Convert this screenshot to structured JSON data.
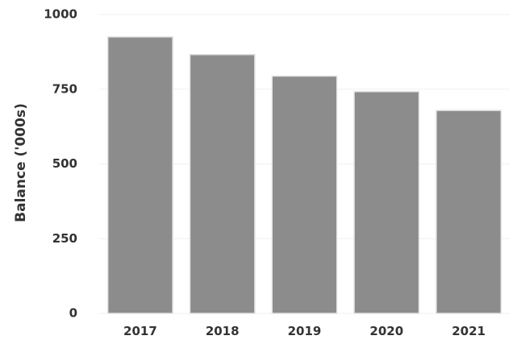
{
  "chart_data": {
    "type": "bar",
    "title": "",
    "xlabel": "",
    "ylabel": "Balance ('000s)",
    "categories": [
      "2017",
      "2018",
      "2019",
      "2020",
      "2021"
    ],
    "values": [
      925,
      866,
      794,
      742,
      679
    ],
    "ylim": [
      0,
      1000
    ],
    "yticks": [
      0,
      250,
      500,
      750,
      1000
    ],
    "grid": true,
    "legend": "none",
    "bar_color": "#8c8c8c"
  }
}
